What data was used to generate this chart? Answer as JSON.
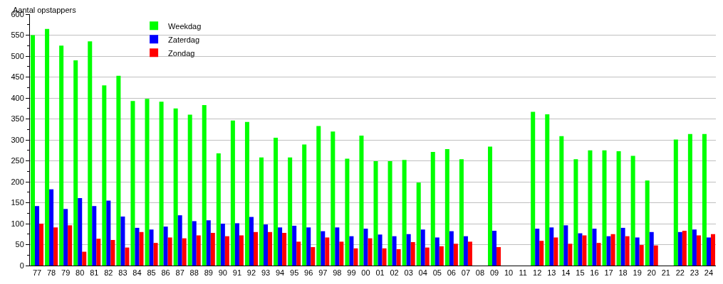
{
  "chart_data": {
    "type": "bar",
    "ylabel": "Aantal opstappers",
    "categories": [
      "77",
      "78",
      "79",
      "80",
      "81",
      "82",
      "83",
      "84",
      "85",
      "86",
      "87",
      "88",
      "89",
      "90",
      "91",
      "92",
      "93",
      "94",
      "95",
      "96",
      "97",
      "98",
      "99",
      "00",
      "01",
      "02",
      "03",
      "04",
      "05",
      "06",
      "07",
      "08",
      "09",
      "10",
      "11",
      "12",
      "13",
      "14",
      "15",
      "16",
      "17",
      "18",
      "19",
      "20",
      "21",
      "22",
      "23",
      "24"
    ],
    "series": [
      {
        "name": "Weekdag",
        "color": "#00ff00",
        "values": [
          550,
          565,
          525,
          490,
          535,
          430,
          453,
          393,
          398,
          391,
          375,
          360,
          383,
          268,
          346,
          343,
          258,
          305,
          258,
          289,
          333,
          320,
          255,
          310,
          249,
          249,
          252,
          198,
          271,
          278,
          254,
          null,
          284,
          null,
          null,
          367,
          361,
          309,
          254,
          275,
          275,
          273,
          262,
          203,
          null,
          301,
          314,
          314
        ]
      },
      {
        "name": "Zaterdag",
        "color": "#0000ff",
        "values": [
          142,
          182,
          135,
          161,
          142,
          155,
          117,
          90,
          86,
          93,
          120,
          106,
          108,
          100,
          101,
          116,
          98,
          91,
          95,
          91,
          82,
          91,
          70,
          88,
          74,
          70,
          75,
          86,
          67,
          82,
          70,
          null,
          83,
          null,
          null,
          88,
          91,
          96,
          77,
          88,
          70,
          90,
          67,
          80,
          null,
          80,
          86,
          67
        ]
      },
      {
        "name": "Zondag",
        "color": "#ff0000",
        "values": [
          100,
          91,
          96,
          33,
          64,
          61,
          43,
          80,
          54,
          67,
          65,
          72,
          78,
          70,
          72,
          80,
          80,
          78,
          57,
          44,
          67,
          57,
          41,
          65,
          41,
          39,
          56,
          43,
          46,
          52,
          57,
          null,
          44,
          null,
          null,
          59,
          67,
          52,
          72,
          54,
          75,
          70,
          49,
          48,
          null,
          83,
          72,
          75
        ]
      }
    ],
    "ylim": [
      0,
      600
    ],
    "yticks": [
      0,
      {
        "value": 25,
        "label": null
      },
      50,
      {
        "value": 75,
        "label": null
      },
      100,
      {
        "value": 125,
        "label": null
      },
      150,
      {
        "value": 175,
        "label": null
      },
      200,
      {
        "value": 225,
        "label": null
      },
      250,
      {
        "value": 275,
        "label": null
      },
      300,
      {
        "value": 325,
        "label": null
      },
      350,
      {
        "value": 375,
        "label": null
      },
      400,
      {
        "value": 425,
        "label": null
      },
      450,
      {
        "value": 475,
        "label": null
      },
      500,
      {
        "value": 525,
        "label": null
      },
      550,
      {
        "value": 575,
        "label": null
      },
      600
    ],
    "grid": "y",
    "legend": "top left"
  }
}
